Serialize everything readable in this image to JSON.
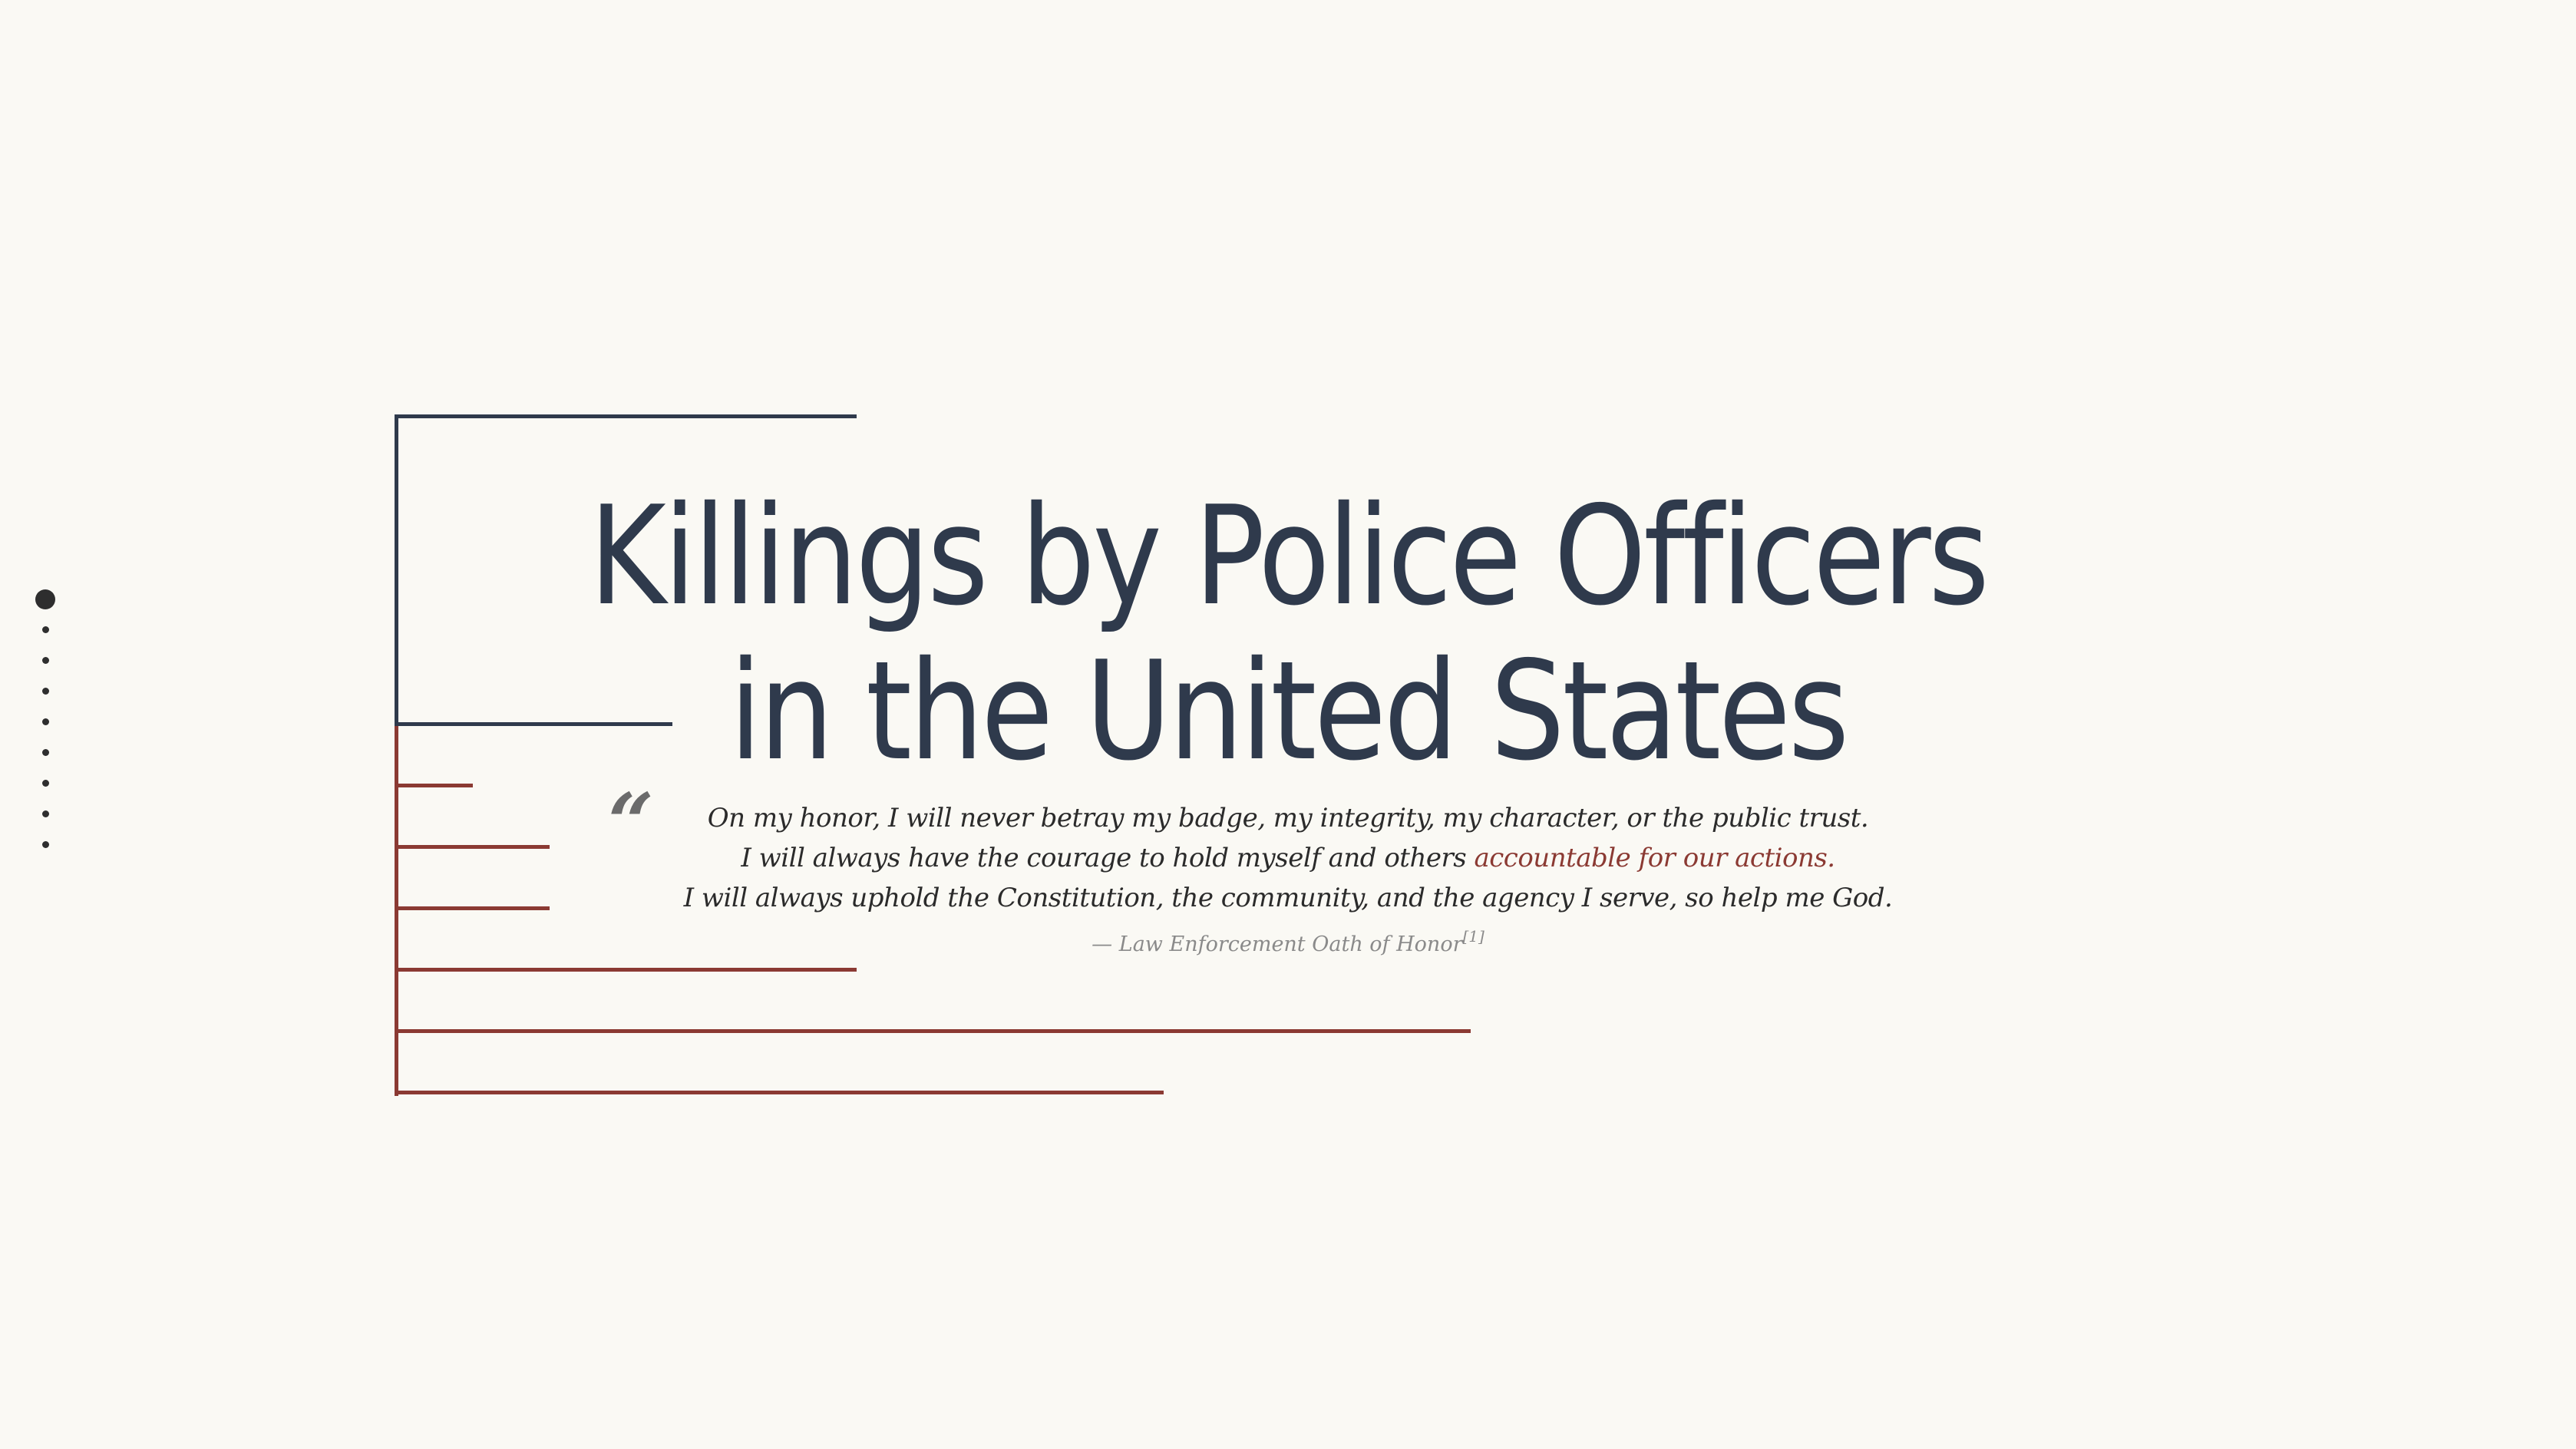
{
  "page": {
    "title_line1": "Killings by Police Officers",
    "title_line2": "in the United States"
  },
  "quote": {
    "mark": "“",
    "line1": "On my honor, I will never betray my badge, my integrity, my character, or the public trust.",
    "line2_pre": "I will always have the courage to hold myself and others ",
    "line2_accent": "accountable for our actions.",
    "line3": "I will always uphold the Constitution, the community, and the agency I serve, so help me God.",
    "attribution_dash": "—",
    "attribution": "Law Enforcement Oath of Honor",
    "footnote": "[1]"
  },
  "nav": {
    "dot_count": 9,
    "active_index": 0
  },
  "colors": {
    "background": "#faf9f4",
    "navy": "#2f3a4c",
    "accent_red": "#8b3a33",
    "muted_gray": "#8a8a8a"
  }
}
